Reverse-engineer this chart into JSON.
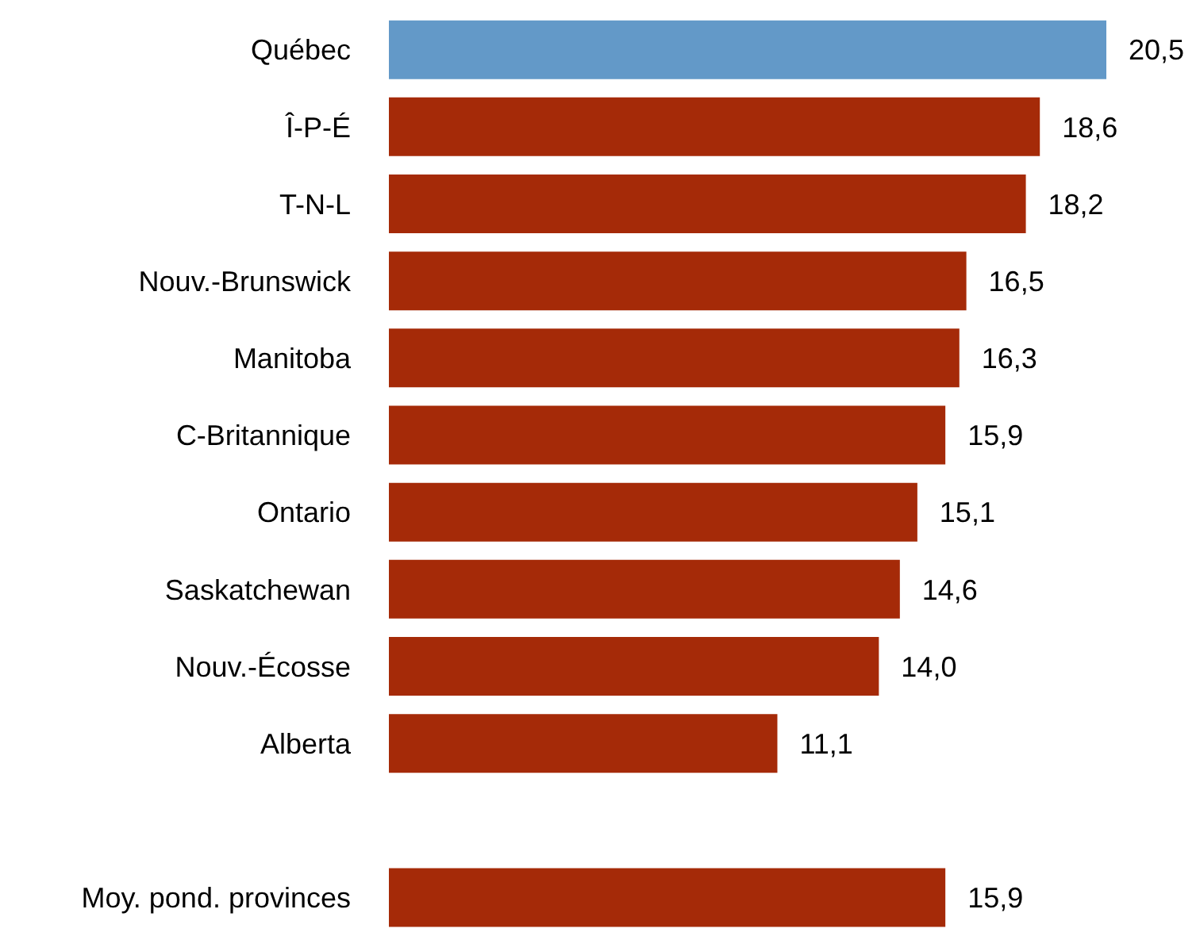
{
  "chart_data": {
    "type": "bar",
    "orientation": "horizontal",
    "tick_labels": "y",
    "categories": [
      "Québec",
      "Î-P-É",
      "T-N-L",
      "Nouv.-Brunswick",
      "Manitoba",
      "C-Britannique",
      "Ontario",
      "Saskatchewan",
      "Nouv.-Écosse",
      "Alberta",
      null,
      "Moy. pond. provinces"
    ],
    "values": [
      20.5,
      18.6,
      18.2,
      16.5,
      16.3,
      15.9,
      15.1,
      14.6,
      14.0,
      11.1,
      null,
      15.9
    ],
    "colors": [
      "#6399c8",
      "#a52a08",
      "#a52a08",
      "#a52a08",
      "#a52a08",
      "#a52a08",
      "#a52a08",
      "#a52a08",
      "#a52a08",
      "#a52a08",
      null,
      "#a52a08"
    ],
    "value_labels": [
      "20,5",
      "18,6",
      "18,2",
      "16,5",
      "16,3",
      "15,9",
      "15,1",
      "14,6",
      "14,0",
      "11,1",
      null,
      "15,9"
    ]
  }
}
